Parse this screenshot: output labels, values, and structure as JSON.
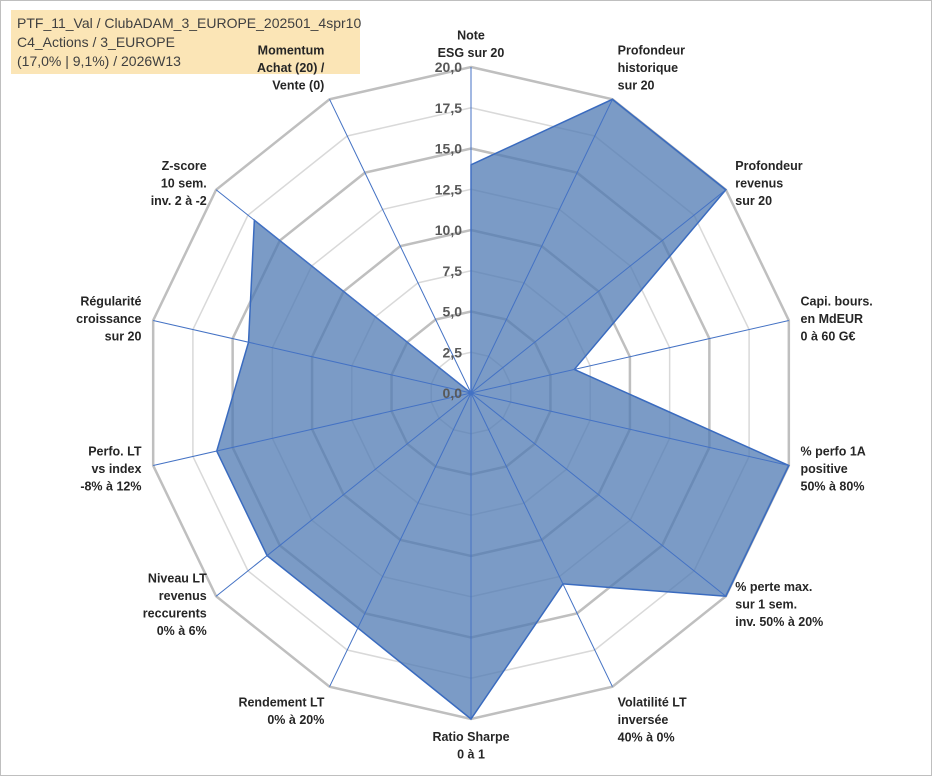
{
  "title_lines": [
    "PTF_11_Val / ClubADAM_3_EUROPE_202501_4spr10",
    "C4_Actions / 3_EUROPE",
    "(17,0% | 9,1%) / 2026W13"
  ],
  "colors": {
    "title_bg": "#fbe5b6",
    "fill": "#4f79b3",
    "fill_opacity": 0.75,
    "outline": "#3a6bbf",
    "grid": "#bfbfbf",
    "spoke": "#4472c4",
    "momentum_label": "#a5a5a5"
  },
  "chart_data": {
    "type": "radar",
    "rmin": 0,
    "rmax": 20,
    "tick_step": 2.5,
    "tick_labels": [
      "0,0",
      "2,5",
      "5,0",
      "7,5",
      "10,0",
      "12,5",
      "15,0",
      "17,5",
      "20,0"
    ],
    "axes": [
      {
        "label_lines": [
          "Note",
          "ESG sur 20"
        ],
        "value": 14
      },
      {
        "label_lines": [
          "Profondeur",
          "historique",
          "sur 20"
        ],
        "value": 20
      },
      {
        "label_lines": [
          "Profondeur",
          "revenus",
          "sur 20"
        ],
        "value": 20
      },
      {
        "label_lines": [
          "Capi. bours.",
          "en MdEUR",
          "0 à 60 G€"
        ],
        "value": 6.5
      },
      {
        "label_lines": [
          "% perfo 1A",
          "positive",
          "50% à 80%"
        ],
        "value": 20
      },
      {
        "label_lines": [
          "% perte max.",
          "sur 1 sem.",
          "inv. 50% à 20%"
        ],
        "value": 20
      },
      {
        "label_lines": [
          "Volatilité LT",
          "inversée",
          "40% à 0%"
        ],
        "value": 13
      },
      {
        "label_lines": [
          "Ratio Sharpe",
          "0 à 1"
        ],
        "value": 20
      },
      {
        "label_lines": [
          "Rendement LT",
          "0% à 20%"
        ],
        "value": 16
      },
      {
        "label_lines": [
          "Niveau LT",
          "revenus",
          "reccurents",
          "0% à 6%"
        ],
        "value": 16
      },
      {
        "label_lines": [
          "Perfo. LT",
          "vs index",
          "-8% à 12%"
        ],
        "value": 16
      },
      {
        "label_lines": [
          "Régularité",
          "croissance",
          "sur 20"
        ],
        "value": 14
      },
      {
        "label_lines": [
          "Z-score",
          "10 sem.",
          "inv. 2 à -2"
        ],
        "value": 17
      },
      {
        "label_lines": [
          "Momentum",
          "Achat (20) /",
          "Vente (0)"
        ],
        "value": 0
      }
    ]
  }
}
